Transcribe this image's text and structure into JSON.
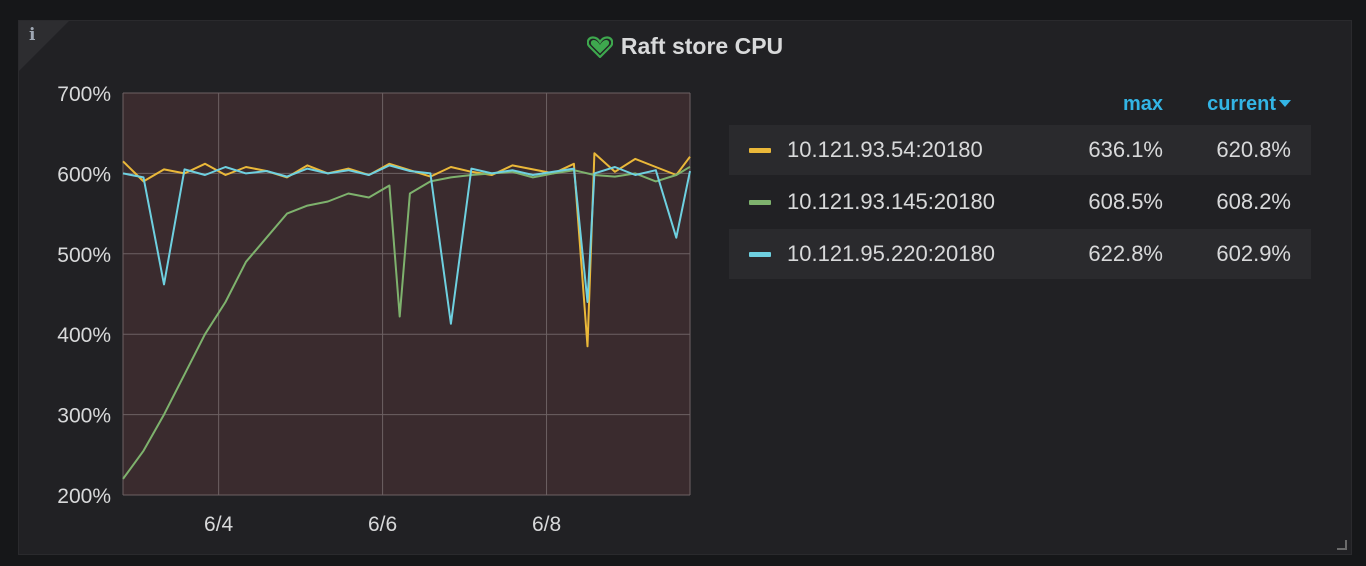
{
  "panel": {
    "title": "Raft store CPU",
    "info_icon": "i",
    "heart_color": "#3ea84e"
  },
  "legend": {
    "headers": {
      "max": "max",
      "current": "current"
    },
    "series": [
      {
        "name": "10.121.93.54:20180",
        "max": "636.1%",
        "current": "620.8%",
        "color": "#eab839"
      },
      {
        "name": "10.121.93.145:20180",
        "max": "608.5%",
        "current": "608.2%",
        "color": "#7eb26d"
      },
      {
        "name": "10.121.95.220:20180",
        "max": "622.8%",
        "current": "602.9%",
        "color": "#6ed0e0"
      }
    ]
  },
  "chart_data": {
    "type": "line",
    "ylim": [
      200,
      700
    ],
    "yticks": [
      200,
      300,
      400,
      500,
      600,
      700
    ],
    "ytick_labels": [
      "200%",
      "300%",
      "400%",
      "500%",
      "600%",
      "700%"
    ],
    "xlim": [
      "2020-06-02T20:00",
      "2020-06-09T18:00"
    ],
    "xticks": [
      "2020-06-04",
      "2020-06-06",
      "2020-06-08"
    ],
    "xtick_labels": [
      "6/4",
      "6/6",
      "6/8"
    ],
    "grid": true,
    "plot_background": "#3a2b2e",
    "series": [
      {
        "name": "10.121.93.54:20180",
        "color": "#eab839",
        "x": [
          "2020-06-02T20:00",
          "2020-06-03T02:00",
          "2020-06-03T08:00",
          "2020-06-03T14:00",
          "2020-06-03T20:00",
          "2020-06-04T02:00",
          "2020-06-04T08:00",
          "2020-06-04T14:00",
          "2020-06-04T20:00",
          "2020-06-05T02:00",
          "2020-06-05T08:00",
          "2020-06-05T14:00",
          "2020-06-05T20:00",
          "2020-06-06T02:00",
          "2020-06-06T08:00",
          "2020-06-06T14:00",
          "2020-06-06T20:00",
          "2020-06-07T02:00",
          "2020-06-07T08:00",
          "2020-06-07T14:00",
          "2020-06-07T20:00",
          "2020-06-08T02:00",
          "2020-06-08T08:00",
          "2020-06-08T12:00",
          "2020-06-08T14:00",
          "2020-06-08T20:00",
          "2020-06-09T02:00",
          "2020-06-09T08:00",
          "2020-06-09T14:00",
          "2020-06-09T18:00"
        ],
        "values": [
          615,
          590,
          605,
          600,
          612,
          598,
          608,
          603,
          595,
          610,
          600,
          606,
          598,
          612,
          604,
          596,
          608,
          602,
          598,
          610,
          605,
          600,
          612,
          385,
          625,
          602,
          618,
          608,
          598,
          620.8
        ]
      },
      {
        "name": "10.121.93.145:20180",
        "color": "#7eb26d",
        "x": [
          "2020-06-02T20:00",
          "2020-06-03T02:00",
          "2020-06-03T08:00",
          "2020-06-03T14:00",
          "2020-06-03T20:00",
          "2020-06-04T02:00",
          "2020-06-04T08:00",
          "2020-06-04T14:00",
          "2020-06-04T20:00",
          "2020-06-05T02:00",
          "2020-06-05T08:00",
          "2020-06-05T14:00",
          "2020-06-05T20:00",
          "2020-06-06T02:00",
          "2020-06-06T05:00",
          "2020-06-06T08:00",
          "2020-06-06T14:00",
          "2020-06-06T20:00",
          "2020-06-07T02:00",
          "2020-06-07T08:00",
          "2020-06-07T14:00",
          "2020-06-07T20:00",
          "2020-06-08T02:00",
          "2020-06-08T08:00",
          "2020-06-08T14:00",
          "2020-06-08T20:00",
          "2020-06-09T02:00",
          "2020-06-09T08:00",
          "2020-06-09T14:00",
          "2020-06-09T18:00"
        ],
        "values": [
          220,
          255,
          300,
          350,
          400,
          440,
          490,
          520,
          550,
          560,
          565,
          575,
          570,
          585,
          422,
          575,
          590,
          595,
          598,
          600,
          602,
          595,
          600,
          604,
          598,
          596,
          600,
          590,
          598,
          608.2
        ]
      },
      {
        "name": "10.121.95.220:20180",
        "color": "#6ed0e0",
        "x": [
          "2020-06-02T20:00",
          "2020-06-03T02:00",
          "2020-06-03T08:00",
          "2020-06-03T14:00",
          "2020-06-03T20:00",
          "2020-06-04T02:00",
          "2020-06-04T08:00",
          "2020-06-04T14:00",
          "2020-06-04T20:00",
          "2020-06-05T02:00",
          "2020-06-05T08:00",
          "2020-06-05T14:00",
          "2020-06-05T20:00",
          "2020-06-06T02:00",
          "2020-06-06T08:00",
          "2020-06-06T14:00",
          "2020-06-06T20:00",
          "2020-06-07T02:00",
          "2020-06-07T08:00",
          "2020-06-07T14:00",
          "2020-06-07T20:00",
          "2020-06-08T02:00",
          "2020-06-08T08:00",
          "2020-06-08T12:00",
          "2020-06-08T14:00",
          "2020-06-08T20:00",
          "2020-06-09T02:00",
          "2020-06-09T08:00",
          "2020-06-09T14:00",
          "2020-06-09T18:00"
        ],
        "values": [
          600,
          595,
          462,
          605,
          598,
          608,
          600,
          603,
          596,
          606,
          600,
          604,
          598,
          610,
          603,
          600,
          413,
          606,
          600,
          604,
          598,
          602,
          606,
          440,
          600,
          608,
          598,
          604,
          520,
          602.9
        ]
      }
    ]
  }
}
